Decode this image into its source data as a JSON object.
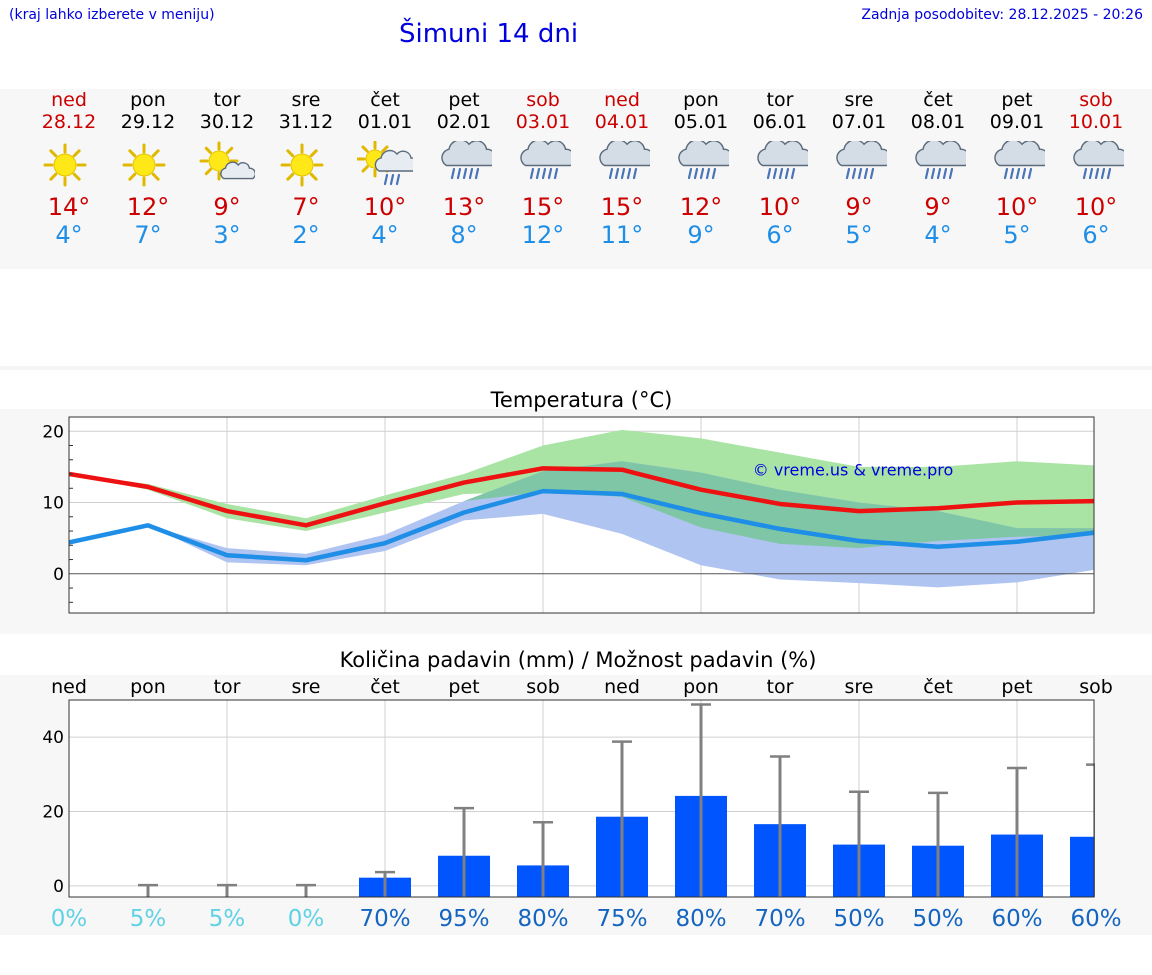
{
  "header": {
    "location_hint": "(kraj lahko izberete v meniju)",
    "title": "Šimuni 14 dni",
    "updated": "Zadnja posodobitev: 28.12.2025 - 20:26"
  },
  "forecast": {
    "days": [
      {
        "name": "ned",
        "date": "28.12",
        "weekend": true,
        "icon": "sun-icon",
        "max": "14°",
        "min": "4°"
      },
      {
        "name": "pon",
        "date": "29.12",
        "weekend": false,
        "icon": "sun-icon",
        "max": "12°",
        "min": "7°"
      },
      {
        "name": "tor",
        "date": "30.12",
        "weekend": false,
        "icon": "sun-cloud-icon",
        "max": "9°",
        "min": "3°"
      },
      {
        "name": "sre",
        "date": "31.12",
        "weekend": false,
        "icon": "sun-icon",
        "max": "7°",
        "min": "2°"
      },
      {
        "name": "čet",
        "date": "01.01",
        "weekend": false,
        "icon": "sun-rain-icon",
        "max": "10°",
        "min": "4°"
      },
      {
        "name": "pet",
        "date": "02.01",
        "weekend": false,
        "icon": "rain-cloud-icon",
        "max": "13°",
        "min": "8°"
      },
      {
        "name": "sob",
        "date": "03.01",
        "weekend": true,
        "icon": "rain-cloud-icon",
        "max": "15°",
        "min": "12°"
      },
      {
        "name": "ned",
        "date": "04.01",
        "weekend": true,
        "icon": "rain-cloud-icon",
        "max": "15°",
        "min": "11°"
      },
      {
        "name": "pon",
        "date": "05.01",
        "weekend": false,
        "icon": "rain-cloud-icon",
        "max": "12°",
        "min": "9°"
      },
      {
        "name": "tor",
        "date": "06.01",
        "weekend": false,
        "icon": "rain-cloud-icon",
        "max": "10°",
        "min": "6°"
      },
      {
        "name": "sre",
        "date": "07.01",
        "weekend": false,
        "icon": "rain-cloud-icon",
        "max": "9°",
        "min": "5°"
      },
      {
        "name": "čet",
        "date": "08.01",
        "weekend": false,
        "icon": "rain-cloud-icon",
        "max": "9°",
        "min": "4°"
      },
      {
        "name": "pet",
        "date": "09.01",
        "weekend": false,
        "icon": "rain-cloud-icon",
        "max": "10°",
        "min": "5°"
      },
      {
        "name": "sob",
        "date": "10.01",
        "weekend": true,
        "icon": "rain-cloud-icon",
        "max": "10°",
        "min": "6°"
      }
    ]
  },
  "colors": {
    "weekend": "#cc0000",
    "max_line": "#ee1111",
    "min_line": "#1e8ee6",
    "max_band": "#a9e4a4",
    "min_band": "#b0c4f2",
    "overlap_band": "#7fc6a6",
    "bar": "#0055ff",
    "error_bar": "#808080",
    "pct_low": "#5fd2e6",
    "pct_high": "#1565c0",
    "watermark": "#0000dd"
  },
  "chart_data": [
    {
      "type": "line",
      "title": "Temperatura (°C)",
      "xlabel": "",
      "ylabel": "",
      "ylim": [
        -5.5,
        22
      ],
      "yticks": [
        0,
        10,
        20
      ],
      "grid": true,
      "watermark": "© vreme.us & vreme.pro",
      "x": [
        0,
        1,
        2,
        3,
        4,
        5,
        6,
        7,
        8,
        9,
        10,
        11,
        12,
        13
      ],
      "series": [
        {
          "name": "max",
          "values": [
            14,
            12.2,
            8.8,
            6.8,
            9.9,
            12.8,
            14.8,
            14.6,
            11.8,
            9.8,
            8.8,
            9.2,
            10,
            10.2
          ]
        },
        {
          "name": "min",
          "values": [
            4.4,
            6.8,
            2.6,
            1.9,
            4.3,
            8.6,
            11.6,
            11.2,
            8.5,
            6.3,
            4.6,
            3.8,
            4.5,
            5.8
          ]
        }
      ],
      "bands": [
        {
          "name": "max_range",
          "upper": [
            14,
            12.6,
            9.8,
            7.8,
            11,
            14,
            18,
            20.2,
            19,
            17,
            15,
            15,
            15.8,
            15.2
          ],
          "lower": [
            14,
            11.8,
            7.8,
            6,
            8.6,
            11.2,
            11.5,
            10.8,
            6.5,
            4.2,
            3.6,
            4.6,
            5.2,
            5.4
          ]
        },
        {
          "name": "min_range",
          "upper": [
            4.4,
            6.8,
            3.6,
            2.8,
            5.5,
            10.2,
            14.4,
            15.8,
            14.2,
            11.8,
            10,
            8.8,
            6.4,
            6.4
          ],
          "lower": [
            4.4,
            6.8,
            1.6,
            1.2,
            3.2,
            7.5,
            8.4,
            5.6,
            1.2,
            -0.8,
            -1.3,
            -1.9,
            -1.2,
            0.6
          ]
        }
      ]
    },
    {
      "type": "bar",
      "title": "Količina padavin (mm) / Možnost padavin (%)",
      "xlabel": "",
      "ylabel": "",
      "ylim": [
        -3,
        50
      ],
      "yticks": [
        0,
        20,
        40
      ],
      "grid": true,
      "categories": [
        "ned",
        "pon",
        "tor",
        "sre",
        "čet",
        "pet",
        "sob",
        "ned",
        "pon",
        "tor",
        "sre",
        "čet",
        "pet",
        "sob"
      ],
      "values": [
        0,
        0,
        0,
        0,
        2.2,
        8.1,
        5.5,
        18.6,
        24.2,
        16.6,
        11.1,
        10.8,
        13.8,
        13.2
      ],
      "error_upper": [
        0,
        0.2,
        0.2,
        0.2,
        3.7,
        20.9,
        17.1,
        38.8,
        48.8,
        34.8,
        25.3,
        25,
        31.7,
        32.6
      ],
      "probability": [
        "0%",
        "5%",
        "5%",
        "0%",
        "70%",
        "95%",
        "80%",
        "75%",
        "80%",
        "70%",
        "50%",
        "50%",
        "60%",
        "60%"
      ]
    }
  ]
}
